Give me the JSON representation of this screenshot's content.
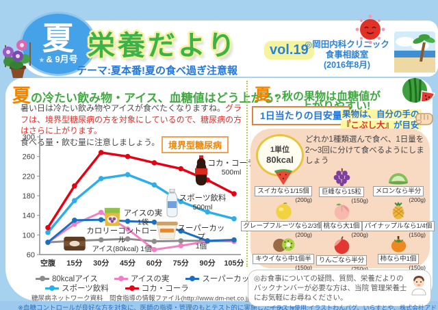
{
  "header": {
    "badge_main": "夏",
    "badge_star": "★",
    "badge_sub": "& 9月号",
    "title": "栄養だより",
    "vol": "vol.19",
    "clinic_line1": "◎岡田内科クリニック",
    "clinic_line2": "食事相談室",
    "clinic_line3": "(2016年8月)",
    "theme": "テーマ:夏本番!夏の食べ過ぎ注意報"
  },
  "left": {
    "heading_first": "夏",
    "heading_rest": "の冷たい飲み物・アイス、血糖値はどう上がる?",
    "intro_normal1": "暑い日は冷たい飲み物やアイスが食べたくなりますね。",
    "intro_red": "グラフは、境界型糖尿病の方を対象にしているので、糖尿病の方はさらに上がります。",
    "intro_normal2": "食べる量・飲む量に注意しましょう。",
    "chart_badge": "境界型糖尿病",
    "annotations": [
      {
        "label": "コカ・コーラ",
        "sub": "500ml",
        "icon": "cola-bottle"
      },
      {
        "label": "スポーツ飲料",
        "sub": "500ml",
        "icon": "sports-bottle"
      },
      {
        "label": "アイスの実",
        "sub": "1袋",
        "icon": "ice-ball-bag"
      },
      {
        "label": "スーパーカップ",
        "sub": "1個",
        "icon": "super-cup"
      },
      {
        "label": "カロリーコントロール",
        "sub": "アイス(80kcal) 1個",
        "icon": "calorie-control-bag"
      }
    ],
    "source": "糖尿病ネットワーク資料　間食指導の情報ファイル(http://www.dm-net.co.jp/)より一部抜粋",
    "footnote": "※血糖コントロールが良好な方を対象に、医師の指導・管理のもとテスト的に実施した一例です"
  },
  "chart_data": {
    "type": "line",
    "title": "境界型糖尿病",
    "categories": [
      "空腹",
      "15分",
      "30分",
      "45分",
      "60分",
      "75分",
      "90分",
      "105分"
    ],
    "series": [
      {
        "name": "80kcalアイス",
        "color": "#8c8c8c",
        "values": [
          85,
          88,
          90,
          92,
          87,
          88,
          88,
          87
        ]
      },
      {
        "name": "アイスの実",
        "color": "#f07fc5",
        "values": [
          85,
          122,
          146,
          112,
          70,
          78,
          87,
          88
        ]
      },
      {
        "name": "スーパーカップ",
        "color": "#1a6fc0",
        "values": [
          85,
          130,
          131,
          128,
          126,
          108,
          88,
          90
        ]
      },
      {
        "name": "スポーツ飲料",
        "color": "#2caee8",
        "values": [
          105,
          170,
          215,
          223,
          202,
          168,
          147,
          133
        ]
      },
      {
        "name": "コカ・コーラ",
        "color": "#e60012",
        "values": [
          115,
          200,
          268,
          260,
          247,
          235,
          212,
          184
        ]
      }
    ],
    "ylim": [
      60,
      300
    ],
    "yticks": [
      60,
      100,
      140,
      180,
      220,
      260,
      300
    ],
    "xlabel": "",
    "ylabel": "",
    "grid": false,
    "legend_position": "bottom"
  },
  "right": {
    "heading_first": "夏",
    "heading_rest": "・秋の果物は血糖値が",
    "heading_line2": "上がりやすい!",
    "box_title": "1日当たりの目安量",
    "hand_note_blue1": "果物は、自分の手の",
    "hand_note_red": "『こぶし大』",
    "hand_note_blue2": "が目安",
    "unit_line1": "1単位",
    "unit_line2": "80kcal",
    "instruction": "どれか1種類選んで食べ、1日量を2〜3回に分けて食べるようにしましょう",
    "fruits": [
      {
        "label": "スイカなら1/15個",
        "weight": "(200g)",
        "icon": "watermelon-slice"
      },
      {
        "label": "巨峰なら15粒",
        "weight": "(150g)",
        "icon": "grapes"
      },
      {
        "label": "メロンなら半分",
        "weight": "(200g)",
        "icon": "melon"
      },
      {
        "label": "グレープフルーツなら2/3個",
        "weight": "(200g)",
        "icon": "grapefruit"
      },
      {
        "label": "桃なら大1個",
        "weight": "(200g)",
        "icon": "peach"
      },
      {
        "label": "パイナップルなら1/4個",
        "weight": "(150g)",
        "icon": "pineapple"
      },
      {
        "label": "キウイなら中1個半",
        "weight": "(150g)",
        "icon": "kiwi"
      },
      {
        "label": "りんごなら半分",
        "weight": "(250g)",
        "icon": "apple"
      },
      {
        "label": "柿なら中1個",
        "weight": "(150g)",
        "icon": "persimmon"
      }
    ],
    "note": "◎お食事についての疑問、質問、栄養だよりのバックナンバーが必要な方は、当院 管理栄養士にお気軽にお尋ねください。"
  },
  "footer": {
    "credit": "イラスト使用:イラストわんパグ、いらすとや、株式会社アドム「五訂版食品図鑑」"
  },
  "colors": {
    "page_bg": "#a6d2f0",
    "title_green": "#3cb34a",
    "accent_orange": "#f08300",
    "heading_green": "#3faa3f",
    "text_blue": "#2277dd",
    "text_red": "#e0302a",
    "panel_peach": "#f8d9c2",
    "highlight_yellow": "#fdf7a2"
  }
}
